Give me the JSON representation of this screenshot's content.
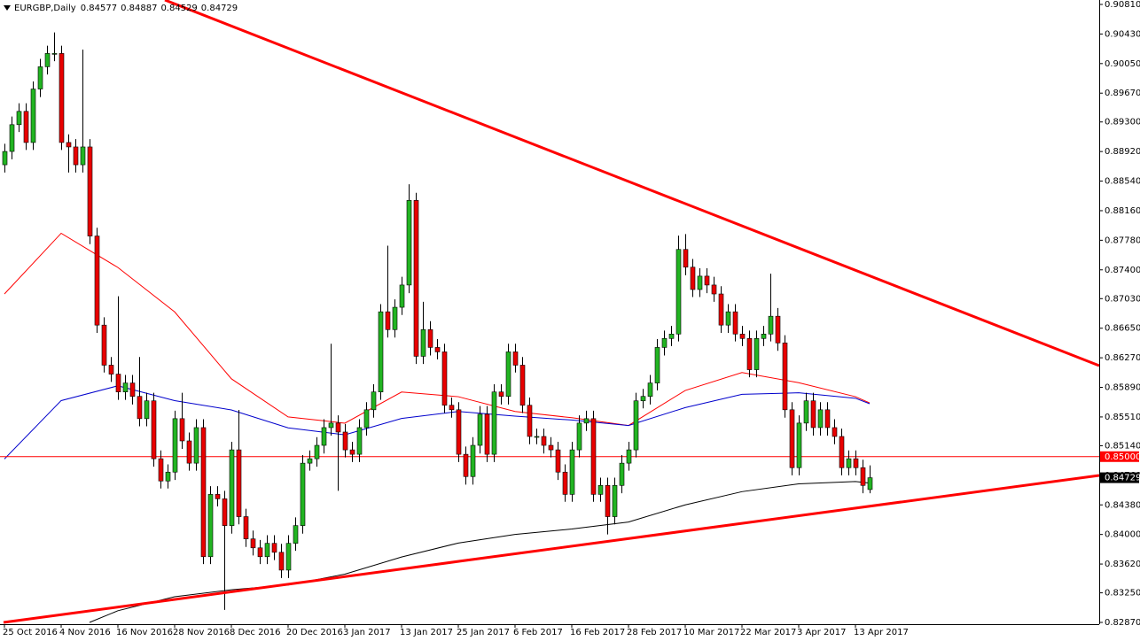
{
  "chart_data": {
    "type": "candlestick",
    "title": "EURGBP,Daily",
    "categories": [
      "25 Oct 2016",
      null,
      null,
      null,
      null,
      null,
      null,
      null,
      "4 Nov 2016",
      null,
      null,
      null,
      null,
      null,
      null,
      null,
      "16 Nov 2016",
      null,
      null,
      null,
      null,
      null,
      null,
      null,
      "28 Nov 2016",
      null,
      null,
      null,
      null,
      null,
      null,
      null,
      "8 Dec 2016",
      null,
      null,
      null,
      null,
      null,
      null,
      null,
      "20 Dec 2016",
      null,
      null,
      null,
      null,
      null,
      null,
      null,
      "3 Jan 2017",
      null,
      null,
      null,
      null,
      null,
      null,
      null,
      "13 Jan 2017",
      null,
      null,
      null,
      null,
      null,
      null,
      null,
      "25 Jan 2017",
      null,
      null,
      null,
      null,
      null,
      null,
      null,
      "6 Feb 2017",
      null,
      null,
      null,
      null,
      null,
      null,
      null,
      "16 Feb 2017",
      null,
      null,
      null,
      null,
      null,
      null,
      null,
      "28 Feb 2017",
      null,
      null,
      null,
      null,
      null,
      null,
      null,
      "10 Mar 2017",
      null,
      null,
      null,
      null,
      null,
      null,
      null,
      "22 Mar 2017",
      null,
      null,
      null,
      null,
      null,
      null,
      null,
      "3 Apr 2017",
      null,
      null,
      null,
      null,
      null,
      null,
      null,
      "13 Apr 2017",
      null,
      null
    ],
    "open": [
      0.8875,
      0.88921,
      0.89265,
      0.89436,
      0.89036,
      0.89723,
      0.90009,
      0.9018,
      0.9018,
      0.89036,
      0.88979,
      0.8875,
      0.88979,
      0.87834,
      0.8669,
      0.86175,
      0.8606,
      0.85831,
      0.85946,
      0.85774,
      0.85488,
      0.85717,
      0.84973,
      0.84687,
      0.84801,
      0.85488,
      0.85202,
      0.84916,
      0.85373,
      0.83714,
      0.84515,
      0.84458,
      0.84114,
      0.85087,
      0.84229,
      0.83943,
      0.83828,
      0.83714,
      0.83886,
      0.83771,
      0.83542,
      0.83886,
      0.84114,
      0.84916,
      0.84973,
      0.85145,
      0.85373,
      0.85431,
      0.85316,
      0.85087,
      0.8503,
      0.85373,
      0.85602,
      0.85831,
      0.86861,
      0.86632,
      0.86919,
      0.87205,
      0.88292,
      0.86289,
      0.86632,
      0.86403,
      0.86346,
      0.8566,
      0.85602,
      0.8503,
      0.84744,
      0.85145,
      0.85545,
      0.8503,
      0.85831,
      0.85774,
      0.86346,
      0.86175,
      0.8566,
      0.85259,
      0.85259,
      0.85145,
      0.85087,
      0.84801,
      0.84515,
      0.85087,
      0.85431,
      0.85488,
      0.84515,
      0.8463,
      0.84229,
      0.8463,
      0.84916,
      0.85087,
      0.85717,
      0.85774,
      0.85946,
      0.86403,
      0.86518,
      0.86575,
      0.87662,
      0.87434,
      0.87147,
      0.87319,
      0.87205,
      0.8709,
      0.8669,
      0.86861,
      0.86575,
      0.86518,
      0.86117,
      0.86518,
      0.86575,
      0.86804,
      0.86461,
      0.85602,
      0.84858,
      0.85431,
      0.85717,
      0.85373,
      0.85602,
      0.85373,
      0.85259,
      0.84858,
      0.84973,
      0.84858,
      0.84577
    ],
    "high": [
      0.8902,
      0.8937,
      0.8954,
      0.8954,
      0.8982,
      0.9011,
      0.9028,
      0.9045,
      0.9028,
      0.8914,
      0.8908,
      0.9023,
      0.8908,
      0.8794,
      0.8679,
      0.8628,
      0.8706,
      0.8605,
      0.8605,
      0.8628,
      0.8582,
      0.8582,
      0.8508,
      0.849,
      0.8559,
      0.8582,
      0.8531,
      0.8548,
      0.8548,
      0.8462,
      0.8462,
      0.8456,
      0.8519,
      0.856,
      0.8433,
      0.8405,
      0.8393,
      0.8399,
      0.8399,
      0.8388,
      0.8399,
      0.8422,
      0.8502,
      0.8508,
      0.8525,
      0.8548,
      0.8645,
      0.8553,
      0.8542,
      0.8519,
      0.8548,
      0.857,
      0.8593,
      0.8696,
      0.8771,
      0.8702,
      0.8731,
      0.885,
      0.8839,
      0.8699,
      0.8674,
      0.8651,
      0.8645,
      0.8576,
      0.857,
      0.8513,
      0.8525,
      0.8565,
      0.8565,
      0.8593,
      0.8593,
      0.8645,
      0.8645,
      0.8628,
      0.8576,
      0.8536,
      0.8536,
      0.8525,
      0.8519,
      0.849,
      0.8519,
      0.8553,
      0.8559,
      0.8559,
      0.8473,
      0.8473,
      0.8473,
      0.8502,
      0.8519,
      0.8582,
      0.8587,
      0.8605,
      0.8651,
      0.8662,
      0.8668,
      0.8784,
      0.8786,
      0.8754,
      0.8742,
      0.8742,
      0.8731,
      0.8719,
      0.8696,
      0.8696,
      0.8668,
      0.8662,
      0.8662,
      0.8668,
      0.8735,
      0.8691,
      0.8656,
      0.857,
      0.8553,
      0.8582,
      0.8582,
      0.857,
      0.857,
      0.8548,
      0.8536,
      0.8508,
      0.8508,
      0.8496,
      0.84887
    ],
    "low": [
      0.8865,
      0.8882,
      0.8917,
      0.8894,
      0.8894,
      0.8962,
      0.8991,
      0.9008,
      0.8894,
      0.8865,
      0.8865,
      0.8865,
      0.8773,
      0.8659,
      0.8608,
      0.8596,
      0.8573,
      0.8573,
      0.8567,
      0.8539,
      0.8539,
      0.8487,
      0.8459,
      0.8459,
      0.847,
      0.851,
      0.8482,
      0.8482,
      0.8362,
      0.8362,
      0.8436,
      0.8303,
      0.8401,
      0.8413,
      0.8384,
      0.8373,
      0.8362,
      0.8362,
      0.8367,
      0.8344,
      0.8344,
      0.8379,
      0.8401,
      0.8482,
      0.8487,
      0.8504,
      0.8527,
      0.8456,
      0.8499,
      0.8493,
      0.8493,
      0.8527,
      0.855,
      0.8573,
      0.8653,
      0.8653,
      0.8682,
      0.871,
      0.8619,
      0.8619,
      0.863,
      0.8625,
      0.8556,
      0.855,
      0.8493,
      0.8464,
      0.8464,
      0.8504,
      0.8493,
      0.8493,
      0.8567,
      0.8567,
      0.8608,
      0.8556,
      0.8516,
      0.8516,
      0.8504,
      0.8499,
      0.847,
      0.8442,
      0.8442,
      0.8499,
      0.8533,
      0.8442,
      0.8442,
      0.84,
      0.8413,
      0.8453,
      0.8482,
      0.8499,
      0.8562,
      0.8567,
      0.8585,
      0.863,
      0.8642,
      0.8648,
      0.8733,
      0.8705,
      0.8705,
      0.871,
      0.8699,
      0.8659,
      0.8659,
      0.8648,
      0.8642,
      0.8602,
      0.8602,
      0.8642,
      0.8648,
      0.8636,
      0.855,
      0.8476,
      0.8476,
      0.8533,
      0.8527,
      0.8527,
      0.8527,
      0.8516,
      0.8476,
      0.8476,
      0.8476,
      0.8453,
      0.84529
    ],
    "close": [
      0.88921,
      0.89265,
      0.89436,
      0.89036,
      0.89723,
      0.90009,
      0.9018,
      0.9018,
      0.89036,
      0.88979,
      0.8875,
      0.88979,
      0.87834,
      0.8669,
      0.86175,
      0.8606,
      0.85831,
      0.85946,
      0.85774,
      0.85488,
      0.85717,
      0.84973,
      0.84687,
      0.84801,
      0.85488,
      0.85202,
      0.84916,
      0.85373,
      0.83714,
      0.84515,
      0.84458,
      0.84114,
      0.85087,
      0.84229,
      0.83943,
      0.83828,
      0.83714,
      0.83886,
      0.83771,
      0.83542,
      0.83886,
      0.84114,
      0.84916,
      0.84973,
      0.85145,
      0.85373,
      0.85431,
      0.85316,
      0.85087,
      0.8503,
      0.85373,
      0.85602,
      0.85831,
      0.86861,
      0.86632,
      0.86919,
      0.87205,
      0.88292,
      0.86289,
      0.86632,
      0.86403,
      0.86346,
      0.8566,
      0.85602,
      0.8503,
      0.84744,
      0.85145,
      0.85545,
      0.8503,
      0.85831,
      0.85774,
      0.86346,
      0.86175,
      0.8566,
      0.85259,
      0.85259,
      0.85145,
      0.85087,
      0.84801,
      0.84515,
      0.85087,
      0.85431,
      0.85488,
      0.84515,
      0.8463,
      0.84229,
      0.8463,
      0.84916,
      0.85087,
      0.85717,
      0.85774,
      0.85946,
      0.86403,
      0.86518,
      0.86575,
      0.87662,
      0.87434,
      0.87147,
      0.87319,
      0.87205,
      0.8709,
      0.8669,
      0.86861,
      0.86575,
      0.86518,
      0.86117,
      0.86518,
      0.86575,
      0.86804,
      0.86461,
      0.85602,
      0.84858,
      0.85431,
      0.85717,
      0.85373,
      0.85602,
      0.85373,
      0.85259,
      0.84858,
      0.84973,
      0.84858,
      0.8463,
      0.84729
    ],
    "up_color": "#22b422",
    "down_color": "#e80000",
    "ylim": [
      0.8287,
      0.9081
    ],
    "yticks": [
      {
        "value": 0.9081,
        "label": "0.90810"
      },
      {
        "value": 0.9043,
        "label": "0.90430"
      },
      {
        "value": 0.9005,
        "label": "0.90050"
      },
      {
        "value": 0.8967,
        "label": "0.89670"
      },
      {
        "value": 0.893,
        "label": "0.89300"
      },
      {
        "value": 0.8892,
        "label": "0.88920"
      },
      {
        "value": 0.8854,
        "label": "0.88540"
      },
      {
        "value": 0.8816,
        "label": "0.88160"
      },
      {
        "value": 0.8778,
        "label": "0.87780"
      },
      {
        "value": 0.874,
        "label": "0.87400"
      },
      {
        "value": 0.8703,
        "label": "0.87030"
      },
      {
        "value": 0.8665,
        "label": "0.86650"
      },
      {
        "value": 0.8627,
        "label": "0.86270"
      },
      {
        "value": 0.8589,
        "label": "0.85890"
      },
      {
        "value": 0.8551,
        "label": "0.85510"
      },
      {
        "value": 0.8514,
        "label": "0.85140"
      },
      {
        "value": 0.8476,
        "label": "0.84760"
      },
      {
        "value": 0.8438,
        "label": "0.84380"
      },
      {
        "value": 0.84,
        "label": "0.84000"
      },
      {
        "value": 0.8362,
        "label": "0.83620"
      },
      {
        "value": 0.8325,
        "label": "0.83250"
      },
      {
        "value": 0.8287,
        "label": "0.82870"
      }
    ],
    "moving_averages": [
      {
        "color": "#ff0000",
        "x": [
          0,
          8,
          16,
          24,
          32,
          40,
          48,
          56,
          64,
          72,
          80,
          88,
          96,
          104,
          112,
          120,
          122
        ],
        "values": [
          0.8709,
          0.8787,
          0.8743,
          0.8686,
          0.86,
          0.8551,
          0.8543,
          0.8583,
          0.8577,
          0.8558,
          0.855,
          0.854,
          0.8585,
          0.8608,
          0.8595,
          0.8577,
          0.8569
        ]
      },
      {
        "color": "#0000cc",
        "x": [
          0,
          8,
          16,
          24,
          32,
          40,
          48,
          56,
          64,
          72,
          80,
          88,
          96,
          104,
          112,
          120,
          122
        ],
        "values": [
          0.8497,
          0.8572,
          0.8591,
          0.8572,
          0.856,
          0.8537,
          0.8528,
          0.8549,
          0.8558,
          0.8552,
          0.8547,
          0.854,
          0.8563,
          0.858,
          0.8582,
          0.8575,
          0.8568
        ]
      },
      {
        "color": "#000000",
        "x": [
          12,
          16,
          24,
          32,
          40,
          48,
          56,
          64,
          72,
          80,
          88,
          96,
          104,
          112,
          120,
          122
        ],
        "values": [
          0.8287,
          0.8302,
          0.832,
          0.8329,
          0.8335,
          0.8349,
          0.8371,
          0.8389,
          0.84,
          0.8407,
          0.8416,
          0.8438,
          0.8455,
          0.8465,
          0.8468,
          0.8466
        ]
      }
    ],
    "level": {
      "value": 0.85,
      "label": "0.85000",
      "color": "#ff0000"
    },
    "grid": false
  }
}
